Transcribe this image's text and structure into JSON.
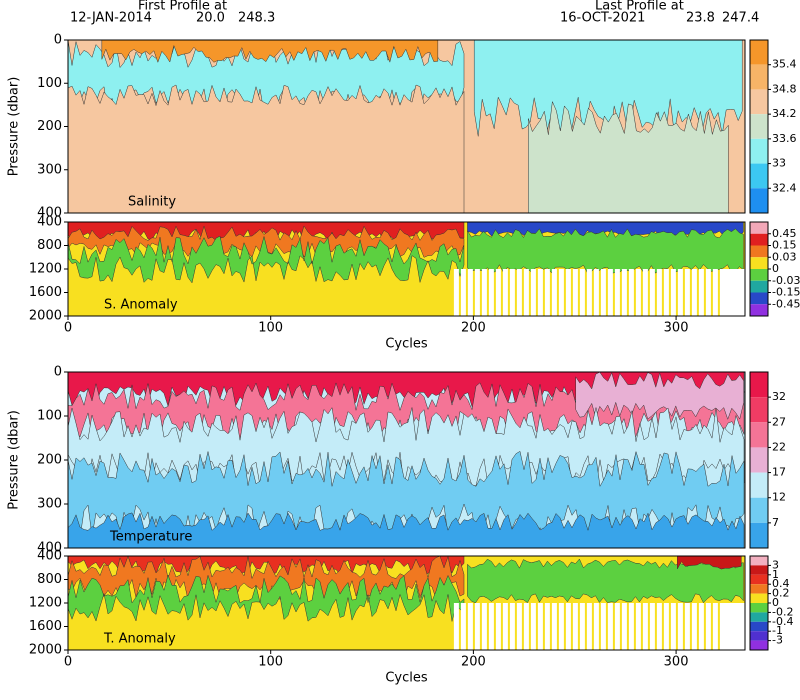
{
  "header": {
    "first_label": "First Profile at",
    "first_date": "12-JAN-2014",
    "first_lat": "20.0",
    "first_lon": "248.3",
    "last_label": "Last Profile at",
    "last_date": "16-OCT-2021",
    "last_lat": "23.8",
    "last_lon": "247.4"
  },
  "chart_data": [
    {
      "type": "contour",
      "title": "Salinity",
      "ylabel": "Pressure (dbar)",
      "xlim": [
        0,
        334
      ],
      "ylim": [
        0,
        400
      ],
      "y_inverted": true,
      "yticks": [
        0,
        100,
        200,
        300,
        400
      ],
      "cticks": [
        35.4,
        34.8,
        34.2,
        33.6,
        33,
        32.4
      ],
      "colors": [
        "#f5962a",
        "#f7b467",
        "#f6c7a0",
        "#cde3cb",
        "#8ef0f0",
        "#3cc8f2",
        "#1e8ff0"
      ]
    },
    {
      "type": "contour",
      "title": "S. Anomaly",
      "xlabel": "Cycles",
      "xlim": [
        0,
        334
      ],
      "ylim": [
        400,
        2000
      ],
      "y_inverted": true,
      "yticks": [
        400,
        800,
        1200,
        1600,
        2000
      ],
      "xticks": [
        0,
        100,
        200,
        300
      ],
      "cticks": [
        0.45,
        0.15,
        0.03,
        0,
        -0.03,
        -0.15,
        -0.45
      ],
      "colors": [
        "#f2a8b8",
        "#e02020",
        "#f07820",
        "#f8e020",
        "#5cd040",
        "#20a8a0",
        "#2848c8",
        "#9030e0"
      ]
    },
    {
      "type": "contour",
      "title": "Temperature",
      "ylabel": "Pressure (dbar)",
      "xlim": [
        0,
        334
      ],
      "ylim": [
        0,
        400
      ],
      "y_inverted": true,
      "yticks": [
        0,
        100,
        200,
        300,
        400
      ],
      "cticks": [
        32,
        27,
        22,
        17,
        12,
        7
      ],
      "colors": [
        "#e8184a",
        "#f03c64",
        "#f47496",
        "#e8b0d4",
        "#c4ecf8",
        "#70ccf2",
        "#38a4ea"
      ]
    },
    {
      "type": "contour",
      "title": "T. Anomaly",
      "xlabel": "Cycles",
      "xlim": [
        0,
        334
      ],
      "ylim": [
        400,
        2000
      ],
      "y_inverted": true,
      "yticks": [
        400,
        800,
        1200,
        1600,
        2000
      ],
      "xticks": [
        0,
        100,
        200,
        300
      ],
      "cticks": [
        3,
        1,
        0.4,
        0.2,
        0,
        -0.2,
        -0.4,
        -1,
        -3
      ],
      "colors": [
        "#f2b0c0",
        "#c81818",
        "#e83020",
        "#f07820",
        "#f8e020",
        "#5cd040",
        "#20a8a0",
        "#2848c8",
        "#5030d0",
        "#9030e0"
      ]
    }
  ]
}
